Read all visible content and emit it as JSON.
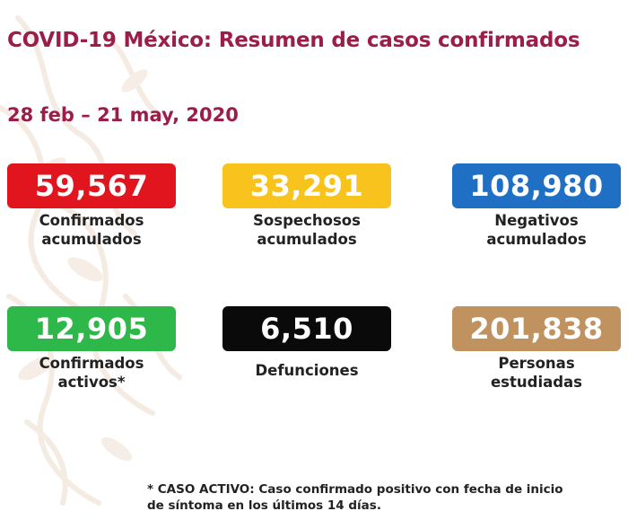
{
  "header": {
    "title": "COVID-19 México: Resumen de casos confirmados",
    "date_range": "28 feb – 21 may, 2020"
  },
  "cards": [
    {
      "value": "59,567",
      "label_line1": "Confirmados",
      "label_line2": "acumulados",
      "color": "#e0151e"
    },
    {
      "value": "33,291",
      "label_line1": "Sospechosos",
      "label_line2": "acumulados",
      "color": "#f7c31c"
    },
    {
      "value": "108,980",
      "label_line1": "Negativos",
      "label_line2": "acumulados",
      "color": "#1f6fc4"
    },
    {
      "value": "12,905",
      "label_line1": "Confirmados",
      "label_line2": "activos*",
      "color": "#2eb84a"
    },
    {
      "value": "6,510",
      "label_line1": "Defunciones",
      "label_line2": "",
      "color": "#0a0a0a"
    },
    {
      "value": "201,838",
      "label_line1": "Personas",
      "label_line2": "estudiadas",
      "color": "#bf9260"
    }
  ],
  "footnote": {
    "line1": "* CASO ACTIVO: Caso confirmado positivo con fecha de inicio",
    "line2": "de síntoma en los últimos 14 días."
  },
  "colors": {
    "title": "#9d1d4a",
    "text": "#222222",
    "background_pattern": "#f3e9df"
  }
}
